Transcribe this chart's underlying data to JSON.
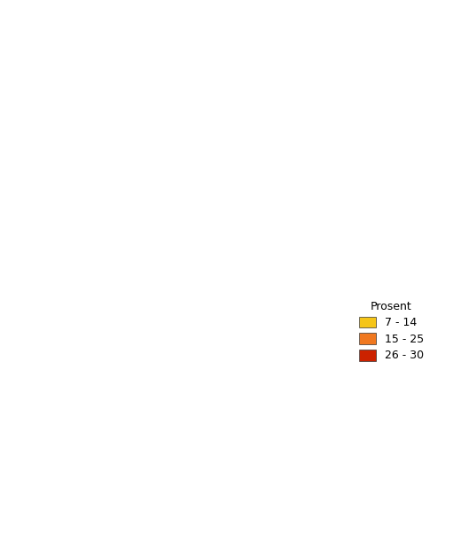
{
  "title": "",
  "legend_title": "Prosent",
  "legend_items": [
    {
      "label": "7 - 14",
      "color": "#F5C518"
    },
    {
      "label": "15 - 25",
      "color": "#F07820"
    },
    {
      "label": "26 - 30",
      "color": "#CC2200"
    }
  ],
  "county_colors": {
    "Finnmark": "#F5C518",
    "Troms": "#F5C518",
    "Nordland": "#F5C518",
    "Nord-Trøndelag": "#F07820",
    "Sør-Trøndelag": "#F07820",
    "Møre og Romsdal": "#F5C518",
    "Sogn og Fjordane": "#F07820",
    "Hordaland": "#CC2200",
    "Rogaland": "#CC2200",
    "Vest-Agder": "#F07820",
    "Aust-Agder": "#F07820",
    "Telemark": "#F5C518",
    "Vestfold": "#F07820",
    "Buskerud": "#F07820",
    "Oppland": "#F5C518",
    "Hedmark": "#F5C518",
    "Akershus": "#F07820",
    "Oslo": "#CC2200",
    "Østfold": "#F07820"
  },
  "background_color": "#ffffff",
  "border_color": "#4a2800",
  "border_width": 0.4,
  "figsize": [
    5.37,
    6.26
  ],
  "dpi": 100
}
